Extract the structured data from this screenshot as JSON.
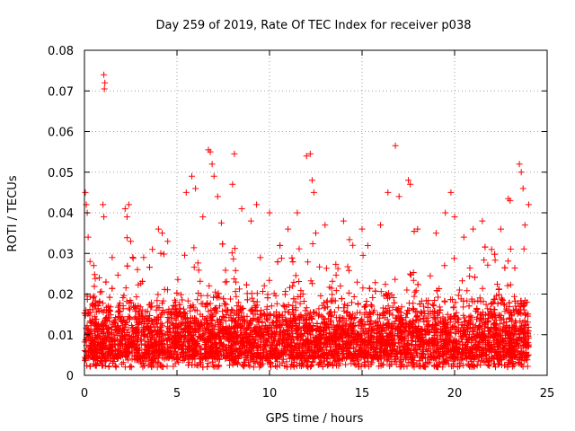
{
  "chart_data": {
    "type": "scatter",
    "title": "Day 259 of 2019, Rate Of TEC Index for receiver p038",
    "xlabel": "GPS time / hours",
    "ylabel": "ROTI / TECUs",
    "xlim": [
      0,
      25
    ],
    "ylim": [
      0,
      0.08
    ],
    "x_ticks": [
      0,
      5,
      10,
      15,
      20,
      25
    ],
    "y_ticks": [
      0,
      0.01,
      0.02,
      0.03,
      0.04,
      0.05,
      0.06,
      0.07,
      0.08
    ],
    "x_tick_labels": [
      "0",
      "5",
      "10",
      "15",
      "20",
      "25"
    ],
    "y_tick_labels": [
      "0",
      "0.01",
      "0.02",
      "0.03",
      "0.04",
      "0.05",
      "0.06",
      "0.07",
      "0.08"
    ],
    "grid": true,
    "marker": "+",
    "color": "#ff0000",
    "series": [
      {
        "name": "p038",
        "points": [
          [
            0.05,
            0.045
          ],
          [
            0.1,
            0.042
          ],
          [
            0.15,
            0.04
          ],
          [
            0.2,
            0.034
          ],
          [
            0.3,
            0.028
          ],
          [
            0.5,
            0.027
          ],
          [
            0.8,
            0.024
          ],
          [
            1.05,
            0.074
          ],
          [
            1.1,
            0.072
          ],
          [
            1.08,
            0.0705
          ],
          [
            1.0,
            0.042
          ],
          [
            1.05,
            0.039
          ],
          [
            1.5,
            0.029
          ],
          [
            2.2,
            0.041
          ],
          [
            2.3,
            0.039
          ],
          [
            2.4,
            0.042
          ],
          [
            2.5,
            0.033
          ],
          [
            3.2,
            0.029
          ],
          [
            4.0,
            0.036
          ],
          [
            4.2,
            0.035
          ],
          [
            4.5,
            0.033
          ],
          [
            5.5,
            0.045
          ],
          [
            5.8,
            0.049
          ],
          [
            6.0,
            0.046
          ],
          [
            6.4,
            0.039
          ],
          [
            6.7,
            0.0555
          ],
          [
            6.8,
            0.055
          ],
          [
            6.9,
            0.052
          ],
          [
            7.0,
            0.049
          ],
          [
            7.2,
            0.044
          ],
          [
            7.4,
            0.0375
          ],
          [
            8.0,
            0.047
          ],
          [
            8.1,
            0.0545
          ],
          [
            8.5,
            0.041
          ],
          [
            9.0,
            0.038
          ],
          [
            9.3,
            0.042
          ],
          [
            10.0,
            0.04
          ],
          [
            11.0,
            0.036
          ],
          [
            11.5,
            0.04
          ],
          [
            12.0,
            0.054
          ],
          [
            12.2,
            0.0545
          ],
          [
            12.3,
            0.048
          ],
          [
            12.4,
            0.045
          ],
          [
            12.5,
            0.035
          ],
          [
            13.0,
            0.037
          ],
          [
            14.0,
            0.038
          ],
          [
            14.5,
            0.032
          ],
          [
            15.0,
            0.036
          ],
          [
            16.0,
            0.037
          ],
          [
            16.4,
            0.045
          ],
          [
            16.8,
            0.0565
          ],
          [
            17.0,
            0.044
          ],
          [
            17.5,
            0.048
          ],
          [
            17.6,
            0.047
          ],
          [
            18.0,
            0.036
          ],
          [
            19.0,
            0.035
          ],
          [
            19.5,
            0.04
          ],
          [
            19.8,
            0.045
          ],
          [
            20.0,
            0.039
          ],
          [
            20.5,
            0.034
          ],
          [
            21.0,
            0.036
          ],
          [
            21.5,
            0.038
          ],
          [
            22.0,
            0.031
          ],
          [
            22.5,
            0.036
          ],
          [
            22.9,
            0.0435
          ],
          [
            23.0,
            0.043
          ],
          [
            23.5,
            0.052
          ],
          [
            23.6,
            0.05
          ],
          [
            23.7,
            0.046
          ],
          [
            23.8,
            0.037
          ],
          [
            24.0,
            0.042
          ]
        ]
      }
    ],
    "dense_band": {
      "note": "continuous cloud of points across 0-24 h",
      "x_range": [
        0,
        24
      ],
      "y_floor": 0.002,
      "y_base_min": 0.004,
      "y_base_max": 0.02,
      "y_peak_max": 0.036
    }
  }
}
